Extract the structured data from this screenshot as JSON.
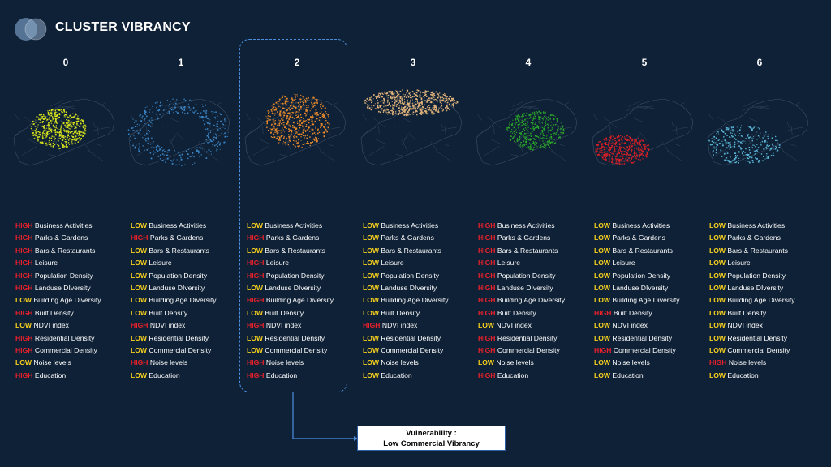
{
  "header": {
    "title": "CLUSTER VIBRANCY"
  },
  "colors": {
    "background": "#0f2136",
    "high": "#e8212b",
    "low": "#f5cf1e",
    "highlight_border": "#4a8fe0"
  },
  "clusters": [
    {
      "label": "0",
      "map_color": "#d6e21b",
      "attributes": [
        {
          "level": "HIGH",
          "name": "Business Activities"
        },
        {
          "level": "HIGH",
          "name": "Parks & Gardens"
        },
        {
          "level": "HIGH",
          "name": " Bars & Restaurants"
        },
        {
          "level": "HIGH",
          "name": "Leisure"
        },
        {
          "level": "HIGH",
          "name": "Population Density"
        },
        {
          "level": "HIGH",
          "name": "Landuse DIversity"
        },
        {
          "level": "LOW",
          "name": "Building Age Diversity"
        },
        {
          "level": "HIGH",
          "name": "Built Density"
        },
        {
          "level": "LOW",
          "name": "NDVI index"
        },
        {
          "level": "HIGH",
          "name": "Residential  Density"
        },
        {
          "level": "HIGH",
          "name": "Commercial Density"
        },
        {
          "level": "LOW",
          "name": "Noise levels"
        },
        {
          "level": "HIGH",
          "name": "Education"
        }
      ]
    },
    {
      "label": "1",
      "map_color": "#3a86c8",
      "attributes": [
        {
          "level": "LOW",
          "name": "Business Activities"
        },
        {
          "level": "HIGH",
          "name": "Parks & Gardens"
        },
        {
          "level": "LOW",
          "name": " Bars & Restaurants"
        },
        {
          "level": "LOW",
          "name": "Leisure"
        },
        {
          "level": "LOW",
          "name": "Population Density"
        },
        {
          "level": "LOW",
          "name": "Landuse DIversity"
        },
        {
          "level": "LOW",
          "name": "Building Age Diversity"
        },
        {
          "level": "LOW",
          "name": "Built Density"
        },
        {
          "level": "HIGH",
          "name": "NDVI index"
        },
        {
          "level": "LOW",
          "name": "Residential  Density"
        },
        {
          "level": "LOW",
          "name": "Commercial Density"
        },
        {
          "level": "HIGH",
          "name": "Noise levels"
        },
        {
          "level": "LOW",
          "name": "Education"
        }
      ]
    },
    {
      "label": "2",
      "map_color": "#e8892a",
      "attributes": [
        {
          "level": "LOW",
          "name": "Business Activities"
        },
        {
          "level": "HIGH",
          "name": "Parks & Gardens"
        },
        {
          "level": "LOW",
          "name": " Bars & Restaurants"
        },
        {
          "level": "HIGH",
          "name": "Leisure"
        },
        {
          "level": "HIGH",
          "name": "Population Density"
        },
        {
          "level": "LOW",
          "name": "Landuse DIversity"
        },
        {
          "level": "HIGH",
          "name": "Building Age Diversity"
        },
        {
          "level": "LOW",
          "name": "Built Density"
        },
        {
          "level": "HIGH",
          "name": "NDVI index"
        },
        {
          "level": "LOW",
          "name": "Residential  Density"
        },
        {
          "level": "LOW",
          "name": "Commercial Density"
        },
        {
          "level": "HIGH",
          "name": "Noise levels"
        },
        {
          "level": "HIGH",
          "name": "Education"
        }
      ]
    },
    {
      "label": "3",
      "map_color": "#e2b47c",
      "attributes": [
        {
          "level": "LOW",
          "name": "Business Activities"
        },
        {
          "level": "LOW",
          "name": "Parks & Gardens"
        },
        {
          "level": "LOW",
          "name": " Bars & Restaurants"
        },
        {
          "level": "LOW",
          "name": "Leisure"
        },
        {
          "level": "LOW",
          "name": "Population Density"
        },
        {
          "level": "LOW",
          "name": "Landuse DIversity"
        },
        {
          "level": "LOW",
          "name": "Building Age Diversity"
        },
        {
          "level": "LOW",
          "name": "Built Density"
        },
        {
          "level": "HIGH",
          "name": "NDVI index"
        },
        {
          "level": "LOW",
          "name": "Residential  Density"
        },
        {
          "level": "LOW",
          "name": "Commercial Density"
        },
        {
          "level": "LOW",
          "name": "Noise levels"
        },
        {
          "level": "LOW",
          "name": "Education"
        }
      ]
    },
    {
      "label": "4",
      "map_color": "#2aa52a",
      "attributes": [
        {
          "level": "HIGH",
          "name": "Business Activities"
        },
        {
          "level": "HIGH",
          "name": "Parks & Gardens"
        },
        {
          "level": "HIGH",
          "name": " Bars & Restaurants"
        },
        {
          "level": "HIGH",
          "name": "Leisure"
        },
        {
          "level": "HIGH",
          "name": "Population Density"
        },
        {
          "level": "HIGH",
          "name": "Landuse DIversity"
        },
        {
          "level": "HIGH",
          "name": "Building Age Diversity"
        },
        {
          "level": "HIGH",
          "name": "Built Density"
        },
        {
          "level": "LOW",
          "name": "NDVI index"
        },
        {
          "level": "HIGH",
          "name": "Residential  Density"
        },
        {
          "level": "HIGH",
          "name": "Commercial Density"
        },
        {
          "level": "LOW",
          "name": "Noise levels"
        },
        {
          "level": "HIGH",
          "name": "Education"
        }
      ]
    },
    {
      "label": "5",
      "map_color": "#d91f26",
      "attributes": [
        {
          "level": "LOW",
          "name": "Business Activities"
        },
        {
          "level": "LOW",
          "name": "Parks & Gardens"
        },
        {
          "level": "LOW",
          "name": " Bars & Restaurants"
        },
        {
          "level": "LOW",
          "name": "Leisure"
        },
        {
          "level": "LOW",
          "name": "Population Density"
        },
        {
          "level": "LOW",
          "name": "Landuse DIversity"
        },
        {
          "level": "LOW",
          "name": "Building Age Diversity"
        },
        {
          "level": "HIGH",
          "name": "Built Density"
        },
        {
          "level": "LOW",
          "name": "NDVI index"
        },
        {
          "level": "LOW",
          "name": "Residential  Density"
        },
        {
          "level": "HIGH",
          "name": "Commercial Density"
        },
        {
          "level": "LOW",
          "name": "Noise levels"
        },
        {
          "level": "LOW",
          "name": "Education"
        }
      ]
    },
    {
      "label": "6",
      "map_color": "#59b6d8",
      "attributes": [
        {
          "level": "LOW",
          "name": "Business Activities"
        },
        {
          "level": "LOW",
          "name": "Parks & Gardens"
        },
        {
          "level": "LOW",
          "name": " Bars & Restaurants"
        },
        {
          "level": "LOW",
          "name": "Leisure"
        },
        {
          "level": "LOW",
          "name": "Population Density"
        },
        {
          "level": "LOW",
          "name": "Landuse DIversity"
        },
        {
          "level": "LOW",
          "name": "Building Age Diversity"
        },
        {
          "level": "LOW",
          "name": "Built Density"
        },
        {
          "level": "LOW",
          "name": "NDVI index"
        },
        {
          "level": "LOW",
          "name": "Residential  Density"
        },
        {
          "level": "LOW",
          "name": "Commercial Density"
        },
        {
          "level": "HIGH",
          "name": "Noise levels"
        },
        {
          "level": "LOW",
          "name": "Education"
        }
      ]
    }
  ],
  "callout": {
    "line1": "Vulnerability :",
    "line2": "Low Commercial Vibrancy"
  }
}
